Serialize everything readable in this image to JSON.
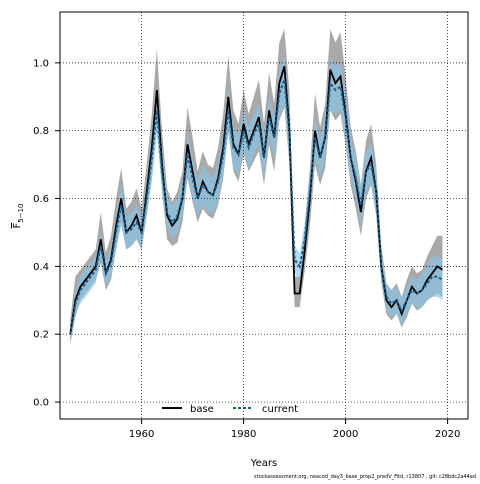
{
  "chart_data": {
    "type": "line",
    "title": "",
    "xlabel": "Years",
    "ylabel_main": "F",
    "ylabel_sub": "5−10",
    "xlim": [
      1944,
      2024
    ],
    "ylim": [
      -0.05,
      1.15
    ],
    "x_ticks": [
      1960,
      1980,
      2000,
      2020
    ],
    "y_ticks": [
      0.0,
      0.2,
      0.4,
      0.6,
      0.8,
      1.0
    ],
    "x_tick_labels": [
      "1960",
      "1980",
      "2000",
      "2020"
    ],
    "y_tick_labels": [
      "0.0",
      "0.2",
      "0.4",
      "0.6",
      "0.8",
      "1.0"
    ],
    "grid": true,
    "legend_position": "bottom",
    "x": [
      1946,
      1947,
      1948,
      1949,
      1950,
      1951,
      1952,
      1953,
      1954,
      1955,
      1956,
      1957,
      1958,
      1959,
      1960,
      1961,
      1962,
      1963,
      1964,
      1965,
      1966,
      1967,
      1968,
      1969,
      1970,
      1971,
      1972,
      1973,
      1974,
      1975,
      1976,
      1977,
      1978,
      1979,
      1980,
      1981,
      1982,
      1983,
      1984,
      1985,
      1986,
      1987,
      1988,
      1989,
      1990,
      1991,
      1992,
      1993,
      1994,
      1995,
      1996,
      1997,
      1998,
      1999,
      2000,
      2001,
      2002,
      2003,
      2004,
      2005,
      2006,
      2007,
      2008,
      2009,
      2010,
      2011,
      2012,
      2013,
      2014,
      2015,
      2016,
      2017,
      2018,
      2019
    ],
    "series": [
      {
        "name": "base",
        "color": "#000000",
        "band_color": "#8c8c8c",
        "values": [
          0.2,
          0.3,
          0.34,
          0.36,
          0.38,
          0.4,
          0.48,
          0.38,
          0.42,
          0.52,
          0.6,
          0.5,
          0.52,
          0.55,
          0.5,
          0.62,
          0.75,
          0.92,
          0.7,
          0.55,
          0.52,
          0.54,
          0.6,
          0.76,
          0.68,
          0.6,
          0.65,
          0.62,
          0.61,
          0.66,
          0.75,
          0.9,
          0.76,
          0.73,
          0.82,
          0.76,
          0.8,
          0.84,
          0.72,
          0.86,
          0.78,
          0.94,
          0.99,
          0.8,
          0.32,
          0.32,
          0.45,
          0.6,
          0.8,
          0.72,
          0.78,
          0.98,
          0.94,
          0.96,
          0.85,
          0.72,
          0.65,
          0.56,
          0.68,
          0.72,
          0.62,
          0.4,
          0.3,
          0.28,
          0.3,
          0.26,
          0.3,
          0.34,
          0.32,
          0.33,
          0.36,
          0.38,
          0.4,
          0.39
        ],
        "lower": [
          0.17,
          0.25,
          0.3,
          0.32,
          0.34,
          0.36,
          0.41,
          0.33,
          0.36,
          0.45,
          0.53,
          0.45,
          0.46,
          0.48,
          0.45,
          0.55,
          0.66,
          0.82,
          0.62,
          0.48,
          0.46,
          0.47,
          0.53,
          0.66,
          0.59,
          0.53,
          0.57,
          0.55,
          0.54,
          0.58,
          0.66,
          0.8,
          0.68,
          0.65,
          0.73,
          0.68,
          0.71,
          0.74,
          0.64,
          0.76,
          0.68,
          0.83,
          0.87,
          0.7,
          0.28,
          0.28,
          0.39,
          0.52,
          0.7,
          0.64,
          0.69,
          0.86,
          0.83,
          0.85,
          0.76,
          0.64,
          0.57,
          0.49,
          0.6,
          0.64,
          0.55,
          0.35,
          0.26,
          0.24,
          0.26,
          0.22,
          0.25,
          0.29,
          0.27,
          0.28,
          0.3,
          0.31,
          0.32,
          0.31
        ],
        "upper": [
          0.24,
          0.37,
          0.39,
          0.41,
          0.43,
          0.45,
          0.56,
          0.44,
          0.49,
          0.6,
          0.69,
          0.57,
          0.59,
          0.63,
          0.57,
          0.7,
          0.85,
          1.04,
          0.8,
          0.63,
          0.59,
          0.62,
          0.68,
          0.87,
          0.78,
          0.68,
          0.74,
          0.7,
          0.69,
          0.75,
          0.85,
          1.02,
          0.86,
          0.82,
          0.92,
          0.85,
          0.9,
          0.95,
          0.82,
          0.97,
          0.88,
          1.06,
          1.1,
          0.91,
          0.37,
          0.37,
          0.52,
          0.69,
          0.91,
          0.81,
          0.88,
          1.1,
          1.06,
          1.09,
          0.96,
          0.81,
          0.74,
          0.64,
          0.77,
          0.82,
          0.7,
          0.46,
          0.35,
          0.33,
          0.35,
          0.31,
          0.36,
          0.4,
          0.38,
          0.39,
          0.43,
          0.46,
          0.49,
          0.49
        ]
      },
      {
        "name": "current",
        "color": "#1a5d8a",
        "band_color": "#87c5e8",
        "values": [
          0.2,
          0.29,
          0.33,
          0.35,
          0.37,
          0.39,
          0.46,
          0.38,
          0.41,
          0.5,
          0.58,
          0.5,
          0.51,
          0.53,
          0.5,
          0.6,
          0.72,
          0.86,
          0.68,
          0.56,
          0.53,
          0.55,
          0.6,
          0.73,
          0.66,
          0.6,
          0.64,
          0.62,
          0.61,
          0.65,
          0.73,
          0.86,
          0.75,
          0.73,
          0.8,
          0.75,
          0.79,
          0.82,
          0.72,
          0.84,
          0.78,
          0.91,
          0.95,
          0.79,
          0.42,
          0.4,
          0.48,
          0.62,
          0.78,
          0.72,
          0.78,
          0.94,
          0.92,
          0.93,
          0.84,
          0.72,
          0.66,
          0.58,
          0.68,
          0.7,
          0.62,
          0.4,
          0.31,
          0.29,
          0.3,
          0.27,
          0.3,
          0.33,
          0.32,
          0.33,
          0.35,
          0.37,
          0.37,
          0.36
        ],
        "lower": [
          0.18,
          0.26,
          0.29,
          0.31,
          0.33,
          0.35,
          0.42,
          0.34,
          0.37,
          0.45,
          0.52,
          0.45,
          0.46,
          0.48,
          0.45,
          0.55,
          0.65,
          0.79,
          0.62,
          0.51,
          0.48,
          0.5,
          0.55,
          0.67,
          0.6,
          0.55,
          0.58,
          0.56,
          0.56,
          0.59,
          0.67,
          0.79,
          0.69,
          0.67,
          0.74,
          0.69,
          0.73,
          0.76,
          0.66,
          0.78,
          0.72,
          0.84,
          0.88,
          0.72,
          0.38,
          0.36,
          0.43,
          0.56,
          0.72,
          0.66,
          0.72,
          0.86,
          0.85,
          0.86,
          0.77,
          0.66,
          0.6,
          0.52,
          0.62,
          0.64,
          0.56,
          0.36,
          0.27,
          0.25,
          0.26,
          0.23,
          0.26,
          0.29,
          0.28,
          0.28,
          0.3,
          0.31,
          0.31,
          0.3
        ],
        "upper": [
          0.22,
          0.32,
          0.37,
          0.39,
          0.41,
          0.43,
          0.5,
          0.42,
          0.45,
          0.55,
          0.64,
          0.55,
          0.56,
          0.58,
          0.55,
          0.65,
          0.79,
          0.93,
          0.74,
          0.61,
          0.58,
          0.6,
          0.65,
          0.79,
          0.72,
          0.65,
          0.7,
          0.68,
          0.66,
          0.71,
          0.79,
          0.93,
          0.81,
          0.79,
          0.86,
          0.81,
          0.85,
          0.88,
          0.78,
          0.9,
          0.84,
          0.98,
          1.02,
          0.86,
          0.46,
          0.44,
          0.53,
          0.68,
          0.84,
          0.78,
          0.84,
          1.02,
          0.99,
          1.0,
          0.91,
          0.78,
          0.72,
          0.64,
          0.74,
          0.76,
          0.68,
          0.44,
          0.35,
          0.33,
          0.34,
          0.31,
          0.34,
          0.37,
          0.36,
          0.38,
          0.4,
          0.43,
          0.43,
          0.42
        ]
      }
    ],
    "footer_note": "stockassessment.org,  neacod_day3_base_prop2_predV_Fitd,  r13807 ,  git: c28bdc2a44ad"
  }
}
